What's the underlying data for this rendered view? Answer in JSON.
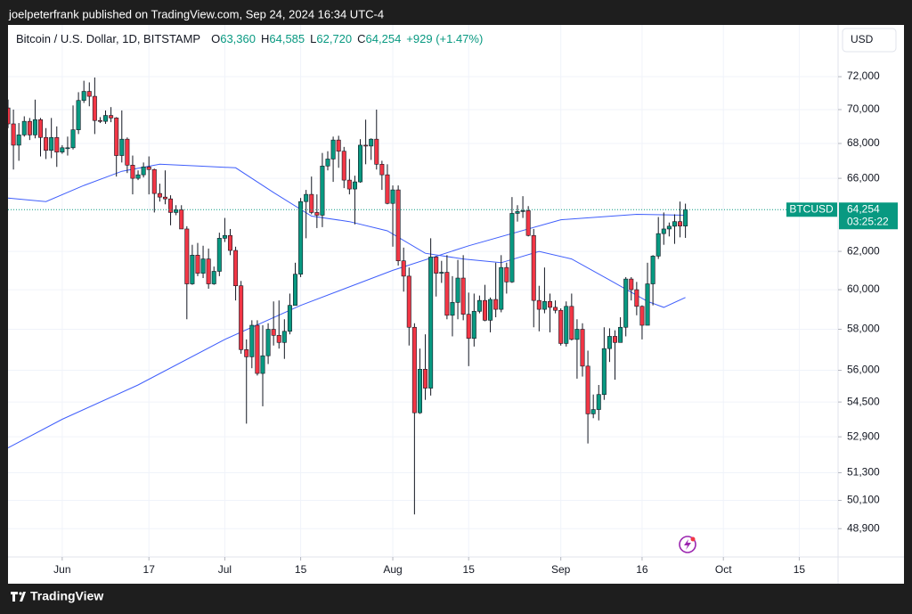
{
  "published": "joelpeterfrank published on TradingView.com, Sep 24, 2024 16:34 UTC-4",
  "brand": "TradingView",
  "currency": "USD",
  "chart_data": {
    "type": "candlestick",
    "title": "Bitcoin / U.S. Dollar, 1D, BITSTAMP",
    "ohlc": [
      {
        "letter": "O",
        "text": "63,360"
      },
      {
        "letter": "H",
        "text": "64,585"
      },
      {
        "letter": "L",
        "text": "62,720"
      },
      {
        "letter": "C",
        "text": "64,254"
      }
    ],
    "change": "+929 (+1.47%)",
    "up_color": "#089981",
    "down_color": "#f23645",
    "log_scale": true,
    "grid": true,
    "xlim": [
      "2024-05-22",
      "2024-10-22"
    ],
    "ylim": [
      47730,
      75260
    ],
    "xticks": [
      {
        "value": "2024-06-01",
        "label": "Jun"
      },
      {
        "value": "2024-06-17",
        "label": "17"
      },
      {
        "value": "2024-07-01",
        "label": "Jul"
      },
      {
        "value": "2024-07-15",
        "label": "15"
      },
      {
        "value": "2024-08-01",
        "label": "Aug"
      },
      {
        "value": "2024-08-15",
        "label": "15"
      },
      {
        "value": "2024-09-01",
        "label": "Sep"
      },
      {
        "value": "2024-09-16",
        "label": "16"
      },
      {
        "value": "2024-10-01",
        "label": "Oct"
      },
      {
        "value": "2024-10-15",
        "label": "15"
      }
    ],
    "yticks": [
      {
        "value": 48900,
        "label": "48,900"
      },
      {
        "value": 50100,
        "label": "50,100"
      },
      {
        "value": 51300,
        "label": "51,300"
      },
      {
        "value": 52900,
        "label": "52,900"
      },
      {
        "value": 54500,
        "label": "54,500"
      },
      {
        "value": 56000,
        "label": "56,000"
      },
      {
        "value": 58000,
        "label": "58,000"
      },
      {
        "value": 60000,
        "label": "60,000"
      },
      {
        "value": 62000,
        "label": "62,000"
      },
      {
        "value": 66000,
        "label": "66,000"
      },
      {
        "value": 68000,
        "label": "68,000"
      },
      {
        "value": 70000,
        "label": "70,000"
      },
      {
        "value": 72000,
        "label": "72,000"
      }
    ],
    "x": [
      "2024-05-22",
      "2024-05-23",
      "2024-05-24",
      "2024-05-25",
      "2024-05-26",
      "2024-05-27",
      "2024-05-28",
      "2024-05-29",
      "2024-05-30",
      "2024-05-31",
      "2024-06-01",
      "2024-06-02",
      "2024-06-03",
      "2024-06-04",
      "2024-06-05",
      "2024-06-06",
      "2024-06-07",
      "2024-06-08",
      "2024-06-09",
      "2024-06-10",
      "2024-06-11",
      "2024-06-12",
      "2024-06-13",
      "2024-06-14",
      "2024-06-15",
      "2024-06-16",
      "2024-06-17",
      "2024-06-18",
      "2024-06-19",
      "2024-06-20",
      "2024-06-21",
      "2024-06-22",
      "2024-06-23",
      "2024-06-24",
      "2024-06-25",
      "2024-06-26",
      "2024-06-27",
      "2024-06-28",
      "2024-06-29",
      "2024-06-30",
      "2024-07-01",
      "2024-07-02",
      "2024-07-03",
      "2024-07-04",
      "2024-07-05",
      "2024-07-06",
      "2024-07-07",
      "2024-07-08",
      "2024-07-09",
      "2024-07-10",
      "2024-07-11",
      "2024-07-12",
      "2024-07-13",
      "2024-07-14",
      "2024-07-15",
      "2024-07-16",
      "2024-07-17",
      "2024-07-18",
      "2024-07-19",
      "2024-07-20",
      "2024-07-21",
      "2024-07-22",
      "2024-07-23",
      "2024-07-24",
      "2024-07-25",
      "2024-07-26",
      "2024-07-27",
      "2024-07-28",
      "2024-07-29",
      "2024-07-30",
      "2024-07-31",
      "2024-08-01",
      "2024-08-02",
      "2024-08-03",
      "2024-08-04",
      "2024-08-05",
      "2024-08-06",
      "2024-08-07",
      "2024-08-08",
      "2024-08-09",
      "2024-08-10",
      "2024-08-11",
      "2024-08-12",
      "2024-08-13",
      "2024-08-14",
      "2024-08-15",
      "2024-08-16",
      "2024-08-17",
      "2024-08-18",
      "2024-08-19",
      "2024-08-20",
      "2024-08-21",
      "2024-08-22",
      "2024-08-23",
      "2024-08-24",
      "2024-08-25",
      "2024-08-26",
      "2024-08-27",
      "2024-08-28",
      "2024-08-29",
      "2024-08-30",
      "2024-08-31",
      "2024-09-01",
      "2024-09-02",
      "2024-09-03",
      "2024-09-04",
      "2024-09-05",
      "2024-09-06",
      "2024-09-07",
      "2024-09-08",
      "2024-09-09",
      "2024-09-10",
      "2024-09-11",
      "2024-09-12",
      "2024-09-13",
      "2024-09-14",
      "2024-09-15",
      "2024-09-16",
      "2024-09-17",
      "2024-09-18",
      "2024-09-19",
      "2024-09-20",
      "2024-09-21",
      "2024-09-22",
      "2024-09-23",
      "2024-09-24"
    ],
    "open": [
      70100,
      69150,
      67900,
      68500,
      69300,
      68500,
      69400,
      68350,
      67600,
      68350,
      67500,
      67750,
      67750,
      68800,
      70550,
      71100,
      70800,
      69350,
      69300,
      69650,
      69500,
      67300,
      68250,
      66750,
      66000,
      66200,
      66650,
      66500,
      65150,
      64950,
      64850,
      64100,
      64250,
      63200,
      60300,
      61800,
      60850,
      61600,
      60300,
      60950,
      62700,
      62850,
      62050,
      60200,
      57000,
      56650,
      58200,
      55850,
      56700,
      58000,
      57700,
      57350,
      57900,
      59200,
      60800,
      64700,
      65100,
      64100,
      63950,
      66700,
      67100,
      68200,
      67550,
      65900,
      65400,
      65800,
      67900,
      67850,
      68250,
      66800,
      66200,
      64600,
      65350,
      61500,
      60700,
      58100,
      54000,
      56050,
      55150,
      61700,
      60850,
      60900,
      58700,
      59350,
      60600,
      58750,
      57550,
      58900,
      59450,
      58450,
      59500,
      59000,
      61150,
      60400,
      64050,
      64150,
      64200,
      62850,
      59450,
      59000,
      59400,
      59100,
      58950,
      57300,
      59150,
      57500,
      58000,
      56200,
      53950,
      54150,
      54850,
      57050,
      57650,
      57350,
      58100,
      60550,
      60000,
      59150,
      58200,
      60300,
      61750,
      62950,
      63200,
      63350,
      63600,
      63360
    ],
    "high": [
      70600,
      70000,
      69200,
      69600,
      69500,
      70600,
      69500,
      68900,
      69500,
      69000,
      67900,
      68400,
      70250,
      71050,
      71750,
      71650,
      71950,
      69550,
      69950,
      70150,
      69550,
      69950,
      68350,
      67300,
      66450,
      66900,
      67250,
      66550,
      65700,
      66450,
      65050,
      64500,
      64500,
      63350,
      62350,
      62450,
      62300,
      62150,
      61200,
      63000,
      63800,
      63200,
      62250,
      60450,
      57500,
      58450,
      58450,
      58200,
      58300,
      59400,
      59450,
      58500,
      59800,
      61400,
      64900,
      65350,
      66100,
      65100,
      67450,
      67550,
      68400,
      68450,
      67800,
      67100,
      66150,
      68250,
      69400,
      68300,
      70000,
      67000,
      66800,
      65600,
      65600,
      62200,
      61150,
      58300,
      57050,
      57750,
      62700,
      61750,
      61500,
      61800,
      60700,
      61550,
      61800,
      59850,
      59800,
      59700,
      60250,
      59600,
      61400,
      61800,
      61400,
      64950,
      64500,
      65000,
      64450,
      63200,
      60200,
      61150,
      59800,
      59450,
      59050,
      59400,
      59800,
      58500,
      58300,
      56950,
      54850,
      55300,
      58100,
      58050,
      57950,
      58600,
      60650,
      60650,
      60400,
      59200,
      61400,
      61800,
      63850,
      64100,
      63550,
      64000,
      64700,
      64585
    ],
    "low": [
      68900,
      66500,
      67000,
      68400,
      68200,
      68300,
      67250,
      67100,
      67150,
      66650,
      67400,
      67300,
      67650,
      68550,
      70400,
      70200,
      68550,
      69200,
      69150,
      69250,
      66100,
      66900,
      66300,
      65100,
      65900,
      66050,
      65100,
      64100,
      64700,
      64550,
      63400,
      63950,
      63200,
      58500,
      60250,
      60700,
      60600,
      60050,
      60250,
      60700,
      62500,
      61800,
      59450,
      56800,
      53500,
      56100,
      55750,
      54300,
      56300,
      57200,
      57050,
      56550,
      57750,
      59200,
      60650,
      62700,
      64000,
      63250,
      63300,
      66450,
      65800,
      66600,
      65450,
      65100,
      63450,
      65750,
      66800,
      67050,
      66500,
      65350,
      64550,
      62250,
      61250,
      59900,
      57200,
      49500,
      53950,
      54600,
      54800,
      59650,
      60350,
      58500,
      57650,
      58500,
      58450,
      56200,
      57150,
      58800,
      58400,
      57850,
      58600,
      58850,
      59800,
      60350,
      63600,
      63800,
      62800,
      58100,
      57900,
      58800,
      57850,
      58800,
      57200,
      57150,
      57450,
      55600,
      55700,
      52600,
      53750,
      53650,
      54600,
      56400,
      55550,
      57350,
      57650,
      59450,
      58700,
      57500,
      58200,
      59200,
      61600,
      62350,
      62800,
      62400,
      62750,
      62720
    ],
    "close": [
      69150,
      67900,
      68500,
      69300,
      68500,
      69400,
      68350,
      67600,
      68350,
      67500,
      67750,
      67750,
      68800,
      70550,
      71100,
      70800,
      69350,
      69300,
      69650,
      69500,
      67300,
      68250,
      66750,
      66000,
      66200,
      66650,
      66500,
      65150,
      64950,
      64850,
      64100,
      64250,
      63200,
      60300,
      61800,
      60850,
      61600,
      60300,
      60950,
      62700,
      62850,
      62050,
      60200,
      57000,
      56650,
      58200,
      55850,
      56700,
      58000,
      57700,
      57350,
      57900,
      59200,
      60800,
      64700,
      65100,
      64100,
      63950,
      66700,
      67100,
      68200,
      67550,
      65900,
      65400,
      65800,
      67900,
      67850,
      68250,
      66800,
      66200,
      64600,
      65350,
      61500,
      60700,
      58100,
      54000,
      56050,
      55150,
      61700,
      60850,
      60900,
      58700,
      59350,
      60600,
      58750,
      57550,
      58900,
      59450,
      58450,
      59500,
      59000,
      61150,
      60400,
      64050,
      64150,
      64200,
      62850,
      59450,
      59000,
      59400,
      59100,
      58950,
      57300,
      59150,
      57500,
      58000,
      56200,
      53950,
      54150,
      54850,
      57050,
      57650,
      57350,
      58100,
      60550,
      60000,
      59150,
      58200,
      60300,
      61750,
      62950,
      63200,
      63350,
      63600,
      63360,
      64254
    ],
    "series": [
      {
        "color": "#3f5efb",
        "x": [
          "2024-05-22",
          "2024-05-29",
          "2024-06-05",
          "2024-06-12",
          "2024-06-19",
          "2024-06-26",
          "2024-07-03",
          "2024-07-10",
          "2024-07-17",
          "2024-07-24",
          "2024-07-31",
          "2024-08-07",
          "2024-08-14",
          "2024-08-21",
          "2024-08-28",
          "2024-09-03",
          "2024-09-10",
          "2024-09-17",
          "2024-09-20",
          "2024-09-24"
        ],
        "values": [
          64900,
          64700,
          65600,
          66400,
          66800,
          66700,
          66600,
          65200,
          63900,
          63600,
          63100,
          61900,
          61600,
          61400,
          62000,
          61600,
          60500,
          59400,
          59100,
          59600
        ]
      },
      {
        "color": "#3f5efb",
        "x": [
          "2024-05-22",
          "2024-06-01",
          "2024-06-15",
          "2024-07-01",
          "2024-07-15",
          "2024-08-01",
          "2024-08-15",
          "2024-09-01",
          "2024-09-15",
          "2024-09-24"
        ],
        "values": [
          52400,
          53700,
          55300,
          57500,
          59200,
          61000,
          62300,
          63700,
          64000,
          63950
        ]
      }
    ],
    "last_price": {
      "symbol": "BTCUSD",
      "value": 64254,
      "label": "64,254",
      "countdown": "03:25:22"
    }
  }
}
